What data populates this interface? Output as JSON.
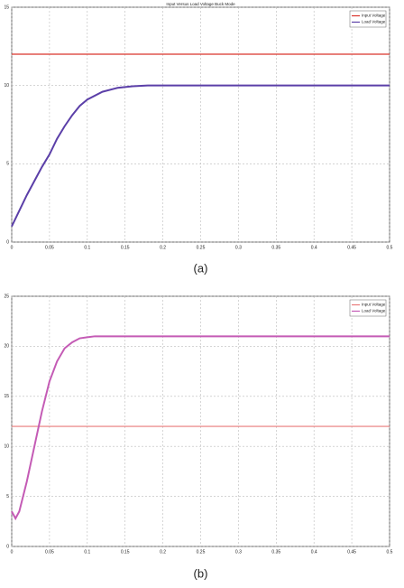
{
  "chart_data": [
    {
      "type": "line",
      "title": "Input Versus Load Voltage Buck Mode",
      "caption": "(a)",
      "x": [
        0,
        0.01,
        0.02,
        0.03,
        0.04,
        0.05,
        0.06,
        0.07,
        0.08,
        0.09,
        0.1,
        0.12,
        0.14,
        0.16,
        0.18,
        0.2,
        0.25,
        0.3,
        0.35,
        0.4,
        0.45,
        0.5
      ],
      "series": [
        {
          "name": "Input Voltage",
          "color": "#d9342b",
          "values": [
            12,
            12,
            12,
            12,
            12,
            12,
            12,
            12,
            12,
            12,
            12,
            12,
            12,
            12,
            12,
            12,
            12,
            12,
            12,
            12,
            12,
            12
          ]
        },
        {
          "name": "Load Voltage",
          "color": "#5b3fa8",
          "values": [
            1,
            2.0,
            3.0,
            3.9,
            4.8,
            5.6,
            6.6,
            7.4,
            8.1,
            8.7,
            9.1,
            9.6,
            9.85,
            9.95,
            10,
            10,
            10,
            10,
            10,
            10,
            10,
            10
          ]
        }
      ],
      "xlim": [
        0,
        0.5
      ],
      "xticks": [
        0,
        0.05,
        0.1,
        0.15,
        0.2,
        0.25,
        0.3,
        0.35,
        0.4,
        0.45,
        0.5
      ],
      "ylim": [
        0,
        15
      ],
      "yticks": [
        0,
        5,
        10,
        15
      ],
      "grid": true,
      "legend": "top-right"
    },
    {
      "type": "line",
      "caption": "(b)",
      "x": [
        0,
        0.005,
        0.01,
        0.02,
        0.03,
        0.04,
        0.05,
        0.06,
        0.07,
        0.08,
        0.09,
        0.1,
        0.11,
        0.12,
        0.14,
        0.16,
        0.2,
        0.3,
        0.4,
        0.5
      ],
      "series": [
        {
          "name": "Input Voltage",
          "color": "#e87a7a",
          "values": [
            12,
            12,
            12,
            12,
            12,
            12,
            12,
            12,
            12,
            12,
            12,
            12,
            12,
            12,
            12,
            12,
            12,
            12,
            12,
            12
          ]
        },
        {
          "name": "Load Voltage",
          "color": "#c45bb5",
          "values": [
            3.5,
            2.8,
            3.5,
            6.5,
            10,
            13.5,
            16.5,
            18.5,
            19.8,
            20.4,
            20.8,
            20.9,
            21,
            21,
            21,
            21,
            21,
            21,
            21,
            21
          ]
        }
      ],
      "xlim": [
        0,
        0.5
      ],
      "xticks": [
        0,
        0.05,
        0.1,
        0.15,
        0.2,
        0.25,
        0.3,
        0.35,
        0.4,
        0.45,
        0.5
      ],
      "ylim": [
        0,
        25
      ],
      "yticks": [
        0,
        5,
        10,
        15,
        20,
        25
      ],
      "grid": true,
      "legend": "top-right"
    }
  ]
}
